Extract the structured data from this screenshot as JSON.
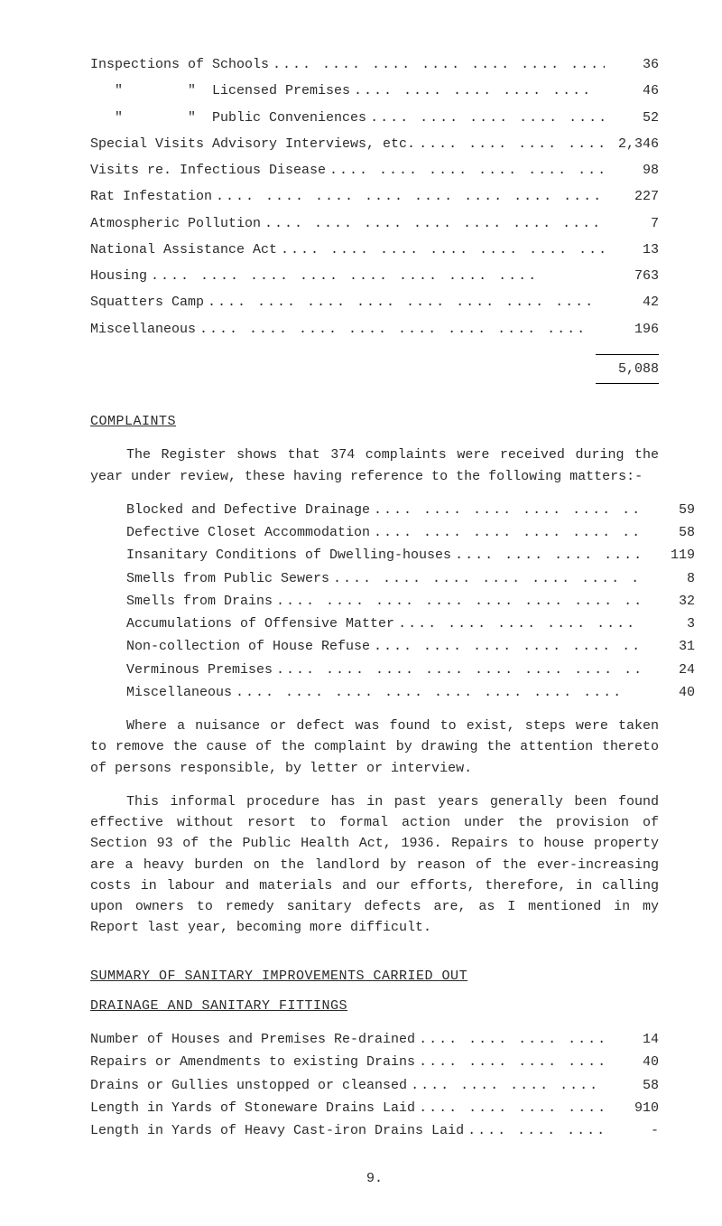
{
  "inspections": {
    "rows": [
      {
        "label": "Inspections of Schools",
        "value": "36"
      },
      {
        "label": "   \"        \"  Licensed Premises",
        "value": "46"
      },
      {
        "label": "   \"        \"  Public Conveniences",
        "value": "52"
      },
      {
        "label": "Special Visits Advisory Interviews, etc.",
        "value": "2,346"
      },
      {
        "label": "Visits re. Infectious Disease",
        "value": "98"
      },
      {
        "label": "Rat Infestation",
        "value": "227"
      },
      {
        "label": "Atmospheric Pollution",
        "value": "7"
      },
      {
        "label": "National Assistance Act",
        "value": "13"
      },
      {
        "label": "Housing",
        "value": "763"
      },
      {
        "label": "Squatters Camp",
        "value": "42"
      },
      {
        "label": "Miscellaneous",
        "value": "196"
      }
    ],
    "total": "5,088"
  },
  "complaints": {
    "heading": "COMPLAINTS",
    "intro": "The Register shows that 374 complaints were received during the year under review, these having reference to the following matters:-",
    "rows": [
      {
        "label": "Blocked and Defective Drainage",
        "value": "59"
      },
      {
        "label": "Defective Closet Accommodation",
        "value": "58"
      },
      {
        "label": "Insanitary Conditions of Dwelling-houses",
        "value": "119"
      },
      {
        "label": "Smells from Public Sewers",
        "value": "8"
      },
      {
        "label": "Smells from Drains",
        "value": "32"
      },
      {
        "label": "Accumulations of Offensive Matter",
        "value": "3"
      },
      {
        "label": "Non-collection of House Refuse",
        "value": "31"
      },
      {
        "label": "Verminous Premises",
        "value": "24"
      },
      {
        "label": "Miscellaneous",
        "value": "40"
      }
    ],
    "para1": "Where a nuisance or defect was found to exist, steps were taken to remove the cause of the complaint by drawing the attention thereto of persons responsible, by letter or interview.",
    "para2": "This informal procedure has in past years generally been found effective without resort to formal action under the provision of Section 93 of the Public Health Act, 1936.  Repairs to house property are a heavy burden on the landlord by reason of the ever-increasing costs in labour and materials and our efforts, therefore, in calling upon owners to remedy sanitary defects are, as I mentioned in my Report last year, becoming more difficult."
  },
  "summary": {
    "heading": "SUMMARY OF SANITARY IMPROVEMENTS CARRIED OUT",
    "subheading": "DRAINAGE AND SANITARY FITTINGS",
    "rows": [
      {
        "label": "Number of Houses and Premises Re-drained",
        "value": "14"
      },
      {
        "label": "Repairs or Amendments to existing Drains",
        "value": "40"
      },
      {
        "label": "Drains or Gullies unstopped or cleansed",
        "value": "58"
      },
      {
        "label": "Length in Yards of Stoneware Drains Laid",
        "value": "910"
      },
      {
        "label": "Length in Yards of Heavy Cast-iron Drains Laid",
        "value": "-"
      }
    ]
  },
  "dots": "....  ....  ....  ....  ....  ....  ....  ....",
  "page": "9."
}
